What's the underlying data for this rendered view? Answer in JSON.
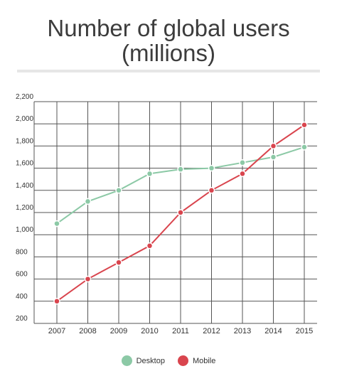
{
  "title": {
    "line1": "Number of global users",
    "line2": "(millions)"
  },
  "chart_data": {
    "type": "line",
    "title": "Number of global users (millions)",
    "x": [
      "2007",
      "2008",
      "2009",
      "2010",
      "2011",
      "2012",
      "2013",
      "2014",
      "2015"
    ],
    "ylim": [
      200,
      2200
    ],
    "yticks": [
      "200",
      "400",
      "600",
      "800",
      "1,000",
      "1,200",
      "1,400",
      "1,600",
      "1,800",
      "2,000",
      "2,200"
    ],
    "grid": true,
    "legend_position": "bottom",
    "series": [
      {
        "name": "Desktop",
        "color": "#8cc9a6",
        "values": [
          1100,
          1300,
          1400,
          1550,
          1590,
          1600,
          1650,
          1700,
          1790
        ]
      },
      {
        "name": "Mobile",
        "color": "#d9454e",
        "values": [
          400,
          600,
          750,
          900,
          1200,
          1400,
          1550,
          1800,
          1990
        ]
      }
    ]
  }
}
